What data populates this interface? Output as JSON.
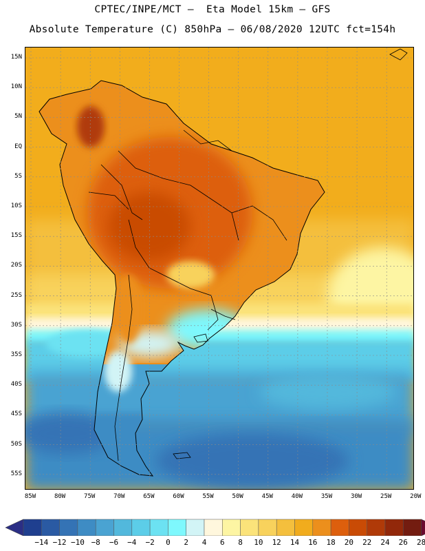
{
  "header": {
    "line1": "CPTEC/INPE/MCT –  Eta Model 15km – GFS",
    "line2": "Absolute Temperature (C) 850hPa – 06/08/2020 12UTC fct=154h"
  },
  "map": {
    "region": "South America",
    "lat_labels": [
      "15N",
      "10N",
      "5N",
      "EQ",
      "5S",
      "10S",
      "15S",
      "20S",
      "25S",
      "30S",
      "35S",
      "40S",
      "45S",
      "50S",
      "55S"
    ],
    "lon_labels": [
      "85W",
      "80W",
      "75W",
      "70W",
      "65W",
      "60W",
      "55W",
      "50W",
      "45W",
      "40W",
      "35W",
      "30W",
      "25W",
      "20W"
    ]
  },
  "colorbar": {
    "labels": [
      "-14",
      "-12",
      "-10",
      "-8",
      "-6",
      "-4",
      "-2",
      "0",
      "2",
      "4",
      "6",
      "8",
      "10",
      "12",
      "14",
      "16",
      "18",
      "20",
      "22",
      "24",
      "26",
      "28"
    ],
    "colors": [
      "#1f3f8f",
      "#2a5aa3",
      "#3473b5",
      "#3e8cc4",
      "#4aa3d2",
      "#52b8dc",
      "#5ccde8",
      "#6ce2f2",
      "#7ef8fd",
      "#d2f4f6",
      "#fff7dd",
      "#fdf5a3",
      "#fbe37a",
      "#f8d25c",
      "#f4bf3d",
      "#f1ac1d",
      "#ec8f1c",
      "#dd5f0d",
      "#c94b05",
      "#b03a08",
      "#92280a",
      "#731c10"
    ],
    "arrow_low_color": "#2b2e85",
    "arrow_high_color": "#6b0a2e"
  }
}
